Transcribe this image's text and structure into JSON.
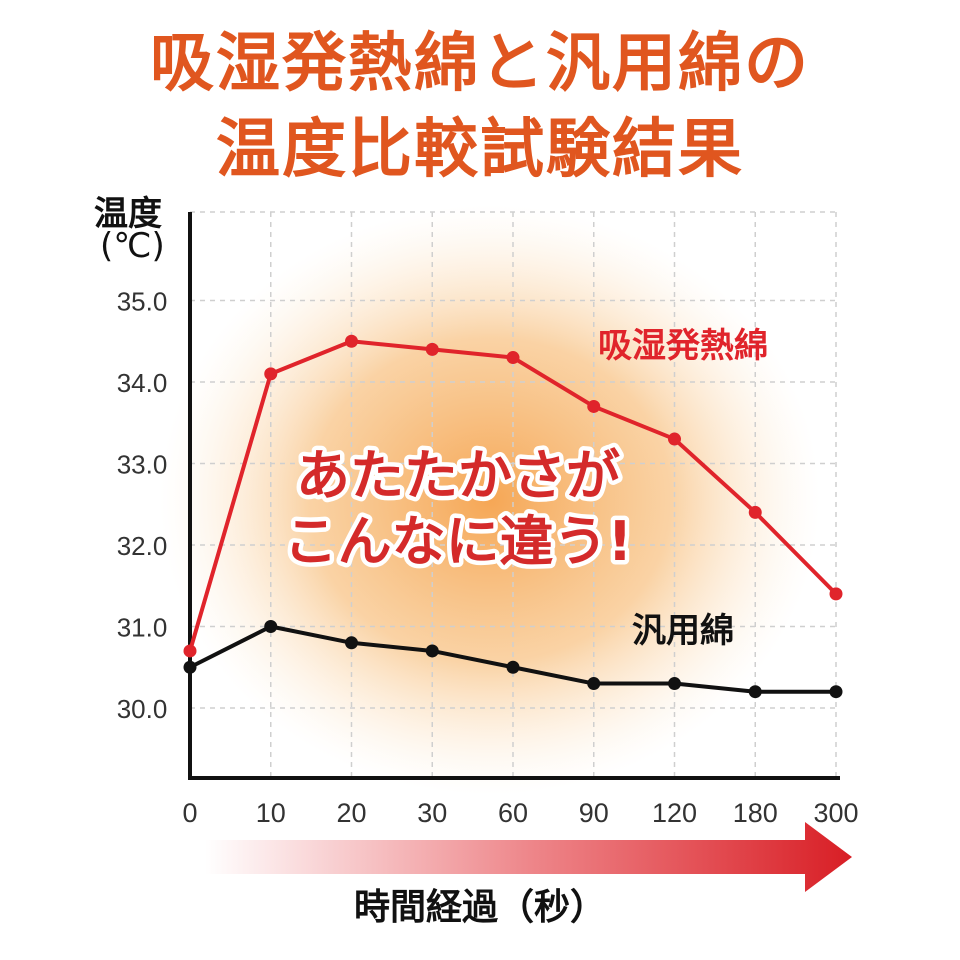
{
  "title_line1": "吸湿発熱綿と汎用綿の",
  "title_line2": "温度比較試験結果",
  "ylabel": "温度",
  "yunit": "(℃)",
  "xlabel": "時間経過（秒）",
  "message_line1": "あたたかさが",
  "message_line2": "こんなに違う!",
  "colors": {
    "title": "#e0561f",
    "series_hot": "#e0242b",
    "series_normal": "#111111",
    "message": "#d42a2a",
    "glow": "#f6a04a"
  },
  "chart_data": {
    "type": "line",
    "categories": [
      "0",
      "10",
      "20",
      "30",
      "60",
      "90",
      "120",
      "180",
      "300"
    ],
    "ylim": [
      29.0,
      35.5
    ],
    "yticks": [
      "30.0",
      "31.0",
      "32.0",
      "33.0",
      "34.0",
      "35.0"
    ],
    "grid": true,
    "series": [
      {
        "name": "吸湿発熱綿",
        "values": [
          30.7,
          34.1,
          34.5,
          34.4,
          34.3,
          33.7,
          33.3,
          32.4,
          31.4
        ]
      },
      {
        "name": "汎用綿",
        "values": [
          30.5,
          31.0,
          30.8,
          30.7,
          30.5,
          30.3,
          30.3,
          30.2,
          30.2
        ]
      }
    ]
  }
}
